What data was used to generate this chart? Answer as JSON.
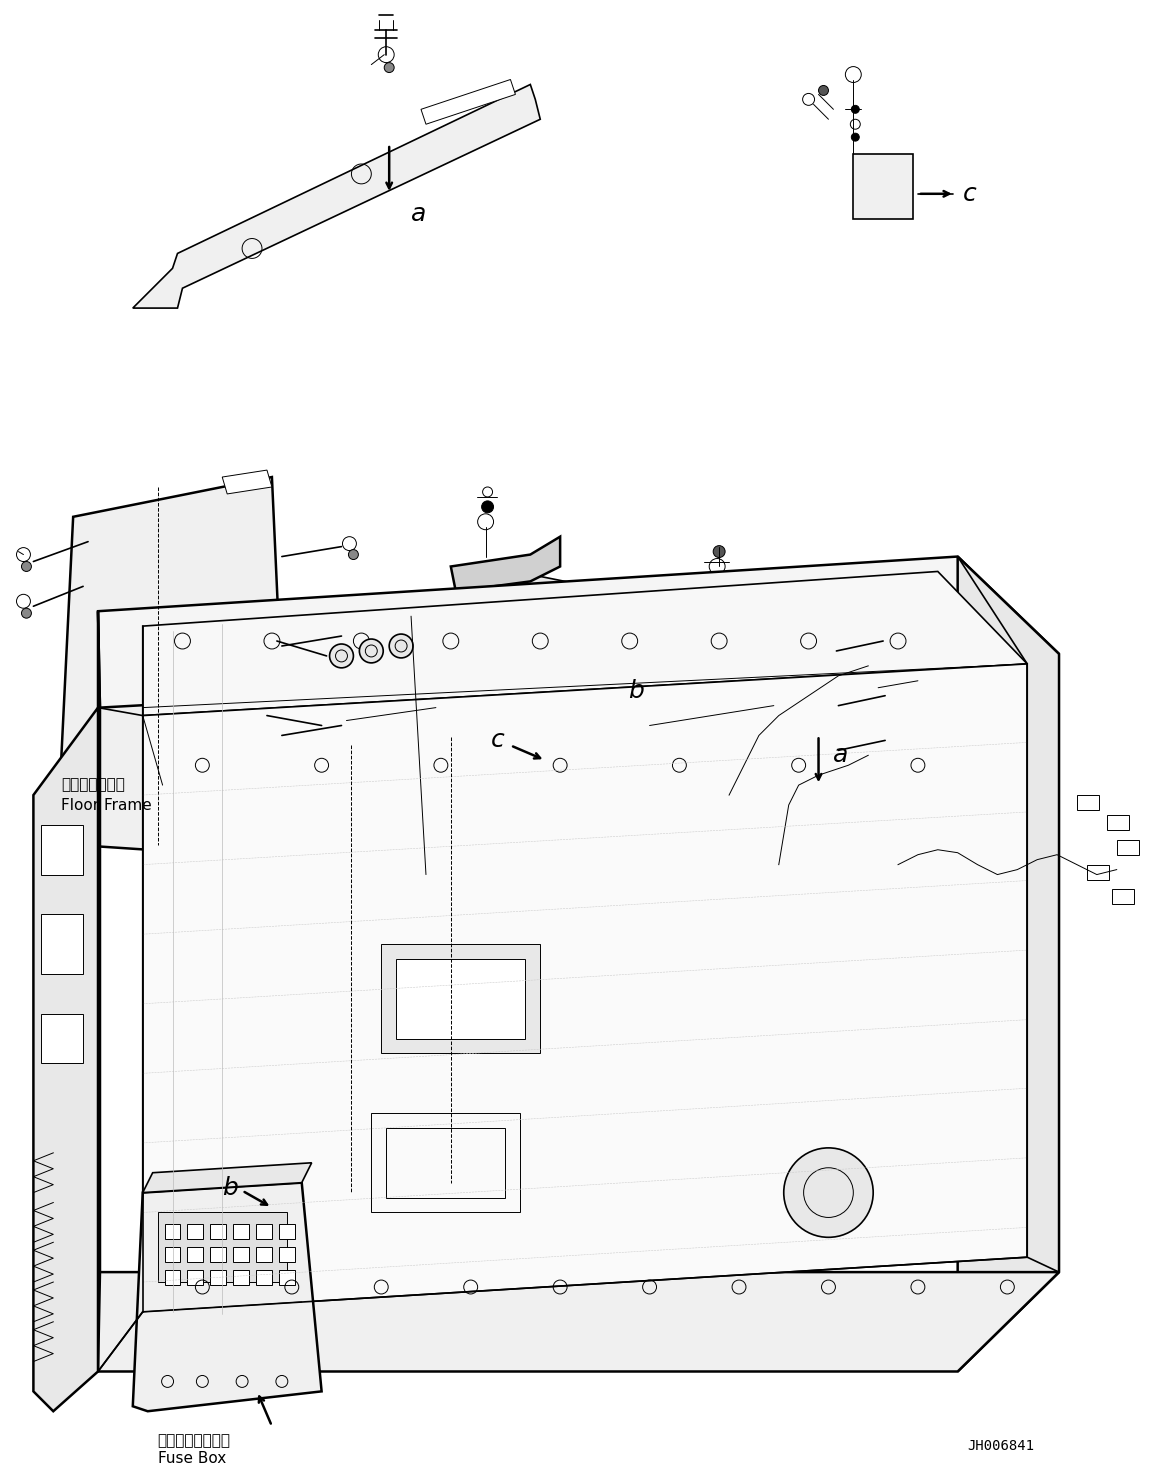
{
  "figure_width": 11.63,
  "figure_height": 14.66,
  "dpi": 100,
  "bg_color": "#ffffff",
  "line_color": "#000000",
  "part_code": "JH006841",
  "floor_frame_jp": "フロアフレーム",
  "floor_frame_en": "Floor Frame",
  "fuse_box_jp": "フューズボックス",
  "fuse_box_en": "Fuse Box"
}
